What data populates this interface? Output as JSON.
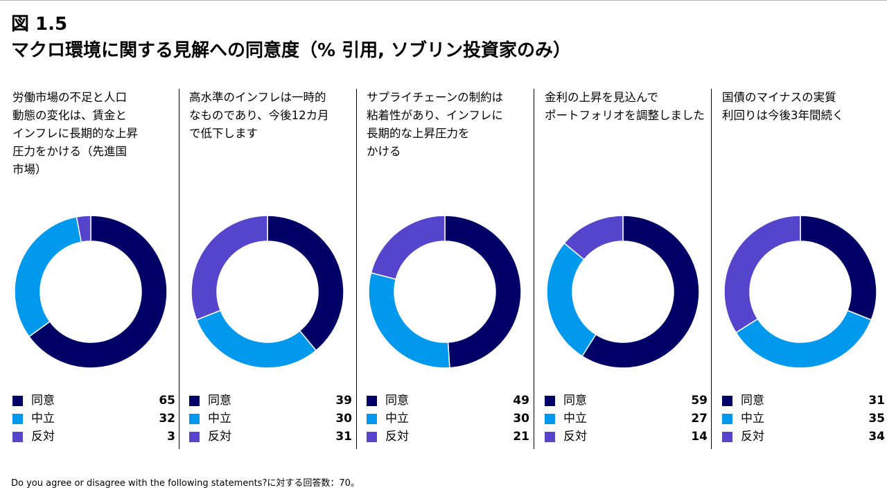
{
  "figure": {
    "number": "図 1.5",
    "title": "マクロ環境に関する見解への同意度（% 引用, ソブリン投資家のみ）"
  },
  "colors": {
    "agree": "#000066",
    "neutral": "#0099ee",
    "disagree": "#5544cc"
  },
  "legend_labels": [
    "同意",
    "中立",
    "反対"
  ],
  "chart_data": [
    {
      "type": "pie",
      "title": "労働市場の不足と人口\n動態の変化は、賃金と\nインフレに長期的な上昇\n圧力をかける（先進国\n市場）",
      "categories": [
        "同意",
        "中立",
        "反対"
      ],
      "values": [
        65,
        32,
        3
      ]
    },
    {
      "type": "pie",
      "title": "高水準のインフレは一時的\nなものであり、今後12カ月\nで低下します",
      "categories": [
        "同意",
        "中立",
        "反対"
      ],
      "values": [
        39,
        30,
        31
      ]
    },
    {
      "type": "pie",
      "title": "サプライチェーンの制約は\n粘着性があり、インフレに\n長期的な上昇圧力を\nかける",
      "categories": [
        "同意",
        "中立",
        "反対"
      ],
      "values": [
        49,
        30,
        21
      ]
    },
    {
      "type": "pie",
      "title": "金利の上昇を見込んで\nポートフォリオを調整しました",
      "categories": [
        "同意",
        "中立",
        "反対"
      ],
      "values": [
        59,
        27,
        14
      ]
    },
    {
      "type": "pie",
      "title": "国債のマイナスの実質\n利回りは今後3年間続く",
      "categories": [
        "同意",
        "中立",
        "反対"
      ],
      "values": [
        31,
        35,
        34
      ]
    }
  ],
  "footnote": "Do you agree or disagree with the following statements?に対する回答数：70。"
}
